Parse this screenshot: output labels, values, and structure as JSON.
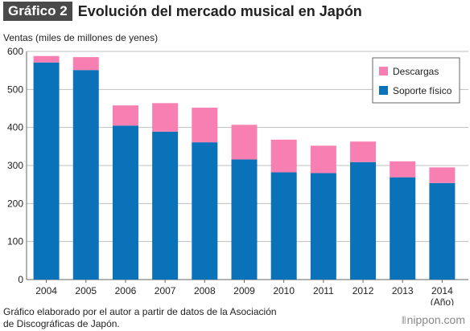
{
  "header": {
    "badge": "Gráfico 2",
    "title": "Evolución del mercado musical en Japón"
  },
  "footnote": {
    "line1": "Gráfico elaborado por el autor a partir de datos de la Asociación",
    "line2": "de Discográficas de Japón."
  },
  "brand": {
    "mark": "|||",
    "name": "nippon.com"
  },
  "chart_data": {
    "type": "bar",
    "stacked": true,
    "ylabel": "Ventas (miles de millones de yenes)",
    "xlabel": "",
    "x_unit": "(Año)",
    "categories": [
      "2004",
      "2005",
      "2006",
      "2007",
      "2008",
      "2009",
      "2010",
      "2011",
      "2012",
      "2013",
      "2014"
    ],
    "series": [
      {
        "name": "Soporte físico",
        "color": "#0a72b8",
        "values": [
          571,
          551,
          405,
          389,
          361,
          316,
          282,
          280,
          309,
          269,
          254
        ]
      },
      {
        "name": "Descargas",
        "color": "#f77fb1",
        "values": [
          17,
          34,
          53,
          75,
          91,
          91,
          86,
          72,
          54,
          42,
          41
        ]
      }
    ],
    "ylim": [
      0,
      600
    ],
    "yticks": [
      0,
      100,
      200,
      300,
      400,
      500,
      600
    ],
    "grid": true,
    "legend_position": "top-right"
  }
}
